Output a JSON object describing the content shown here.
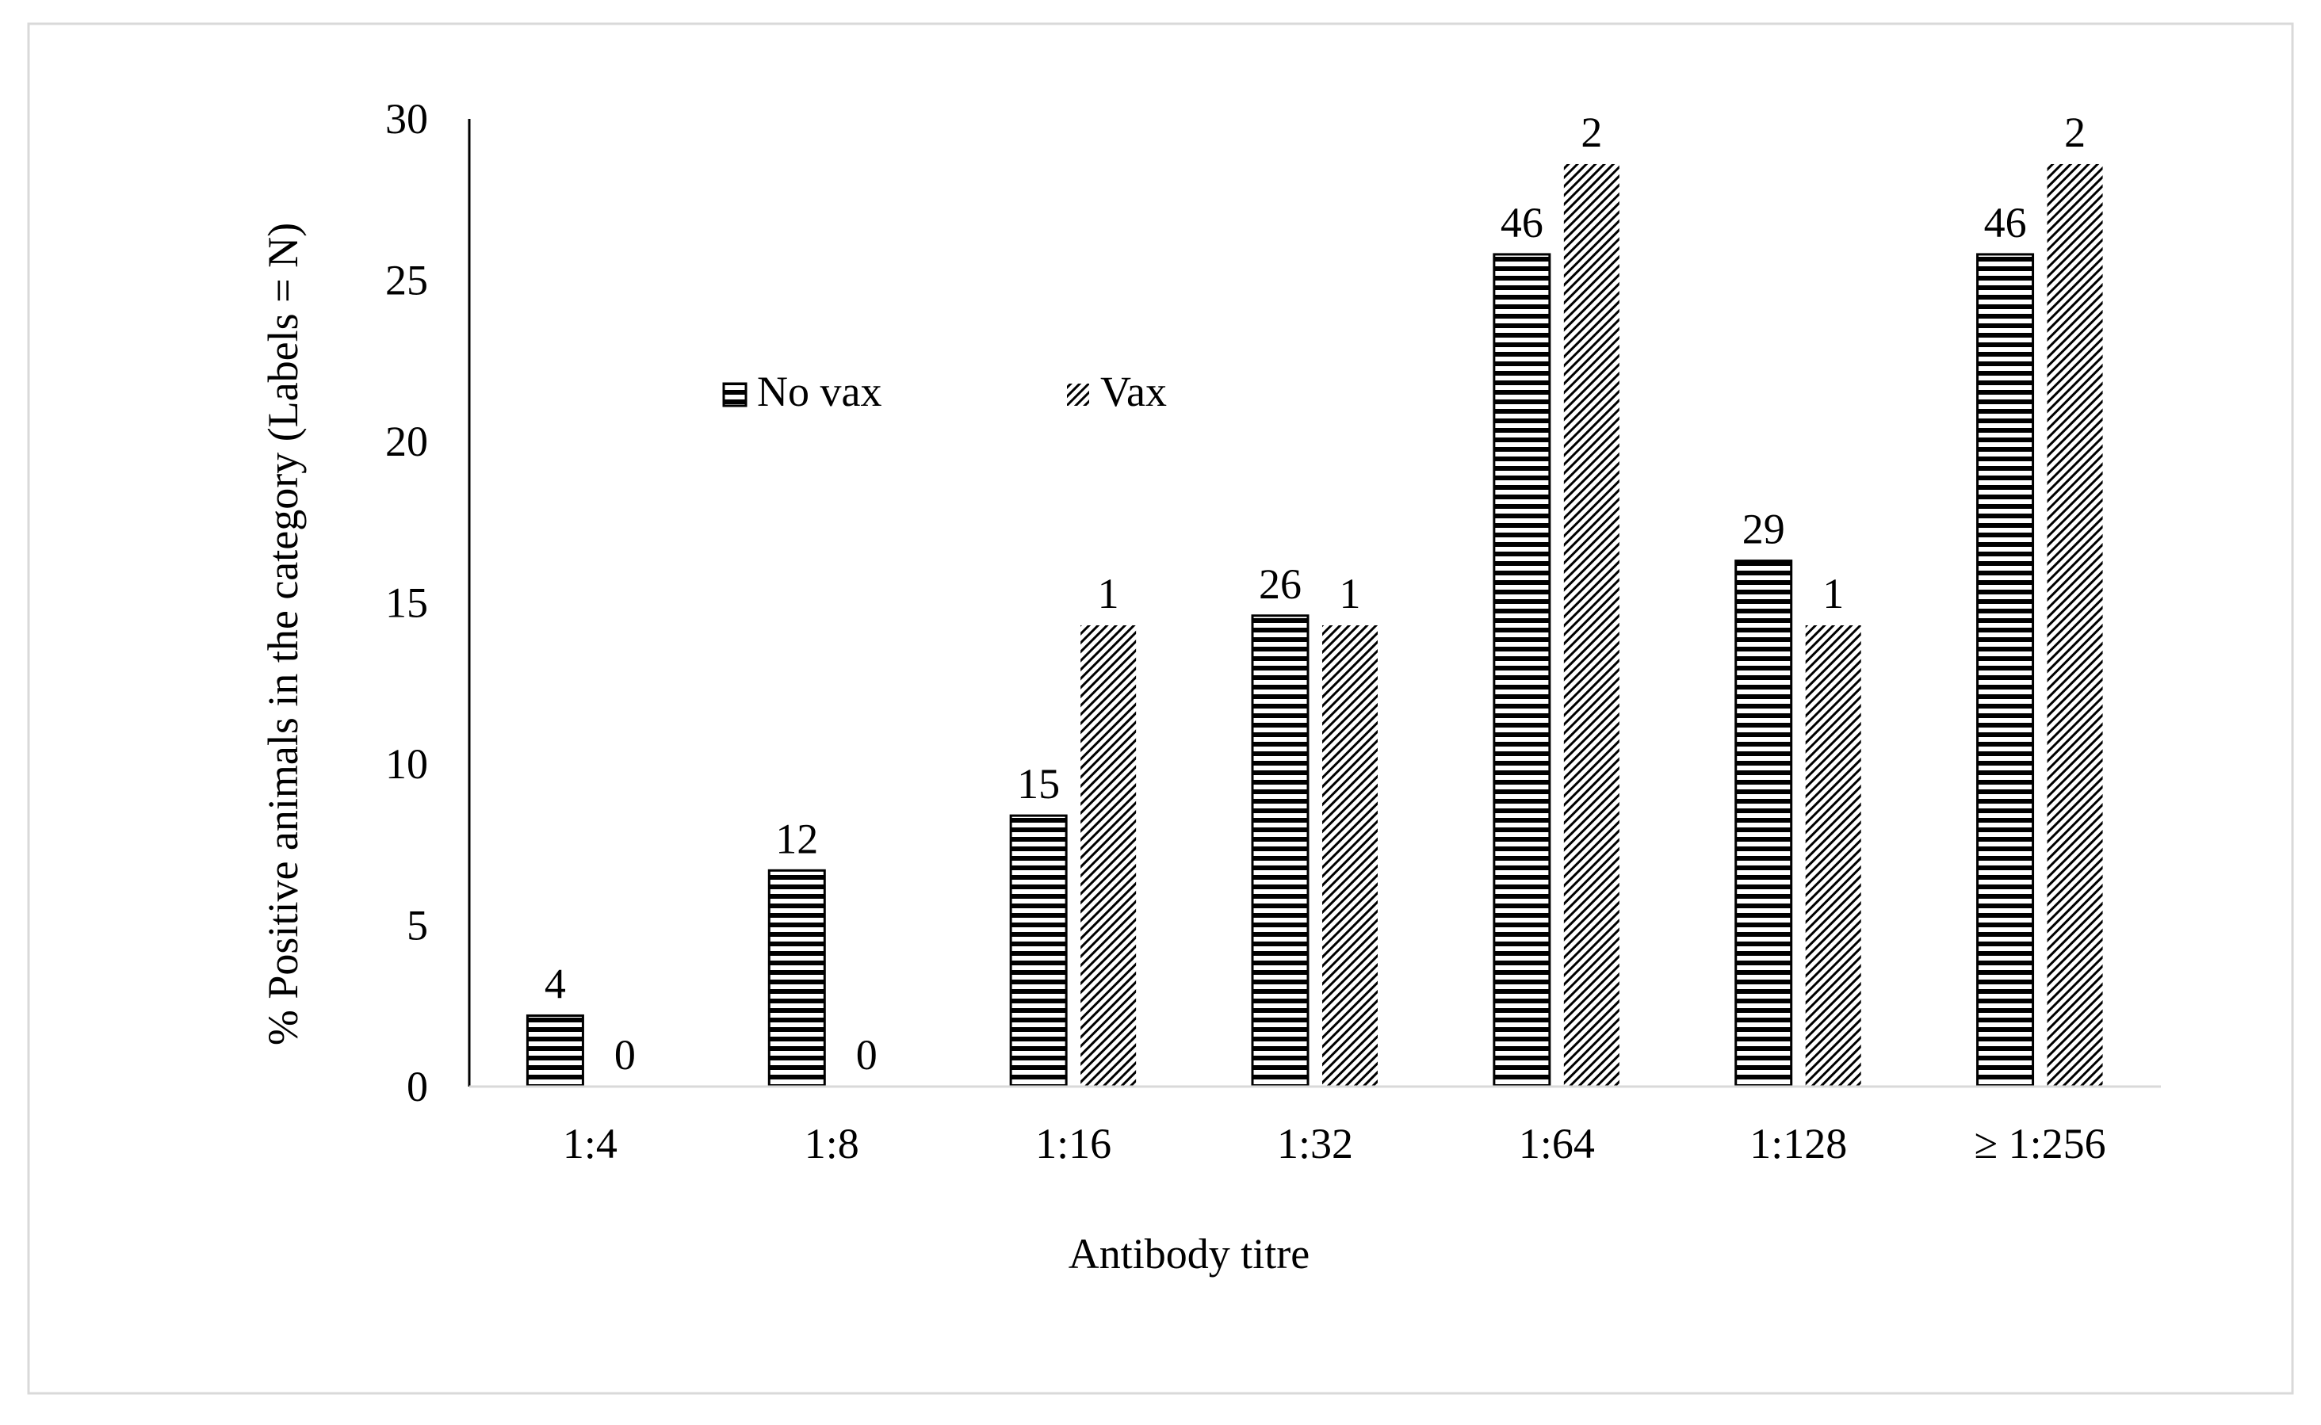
{
  "chart_data": {
    "type": "bar",
    "title": "",
    "xlabel": "Antibody titre",
    "ylabel": "% Positive animals in the category (Labels = N)",
    "ylim": [
      0,
      30
    ],
    "yticks": [
      0,
      5,
      10,
      15,
      20,
      25,
      30
    ],
    "grid": false,
    "legend_position": "inside-upper-left",
    "categories": [
      "1:4",
      "1:8",
      "1:16",
      "1:32",
      "1:64",
      "1:128",
      "≥ 1:256"
    ],
    "series": [
      {
        "name": "No vax",
        "pattern": "horizontal-lines",
        "values": [
          2.2,
          6.7,
          8.4,
          14.6,
          25.8,
          16.3,
          25.8
        ],
        "labels": [
          "4",
          "12",
          "15",
          "26",
          "46",
          "29",
          "46"
        ]
      },
      {
        "name": "Vax",
        "pattern": "diagonal-lines",
        "values": [
          0,
          0,
          14.3,
          14.3,
          28.6,
          14.3,
          28.6
        ],
        "labels": [
          "0",
          "0",
          "1",
          "1",
          "2",
          "1",
          "2"
        ]
      }
    ],
    "colors": {
      "ink": "#000000",
      "frame": "#d9d9d9",
      "background": "#ffffff"
    }
  }
}
